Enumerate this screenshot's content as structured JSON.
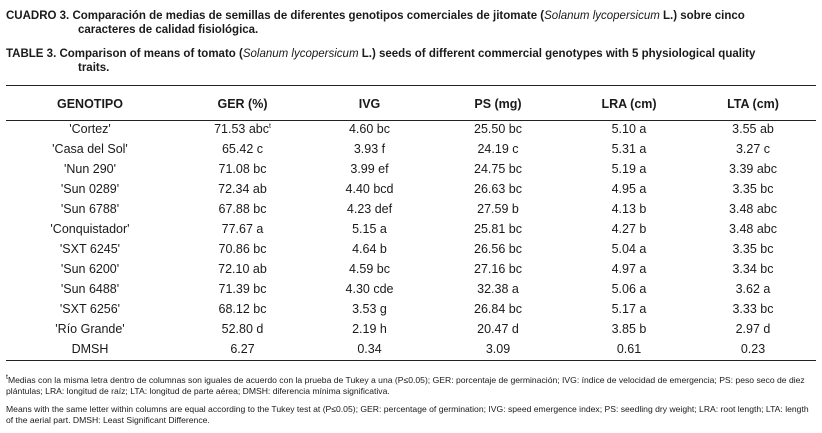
{
  "caption_es": {
    "label": "CUADRO 3.",
    "text_before": " Comparación de medias de semillas de diferentes genotipos comerciales de jitomate (",
    "species": "Solanum lycopersicum",
    "text_after": " L.) sobre cinco",
    "line2": "caracteres de calidad fisiológica."
  },
  "caption_en": {
    "label": "TABLE 3.",
    "text_before": " Comparison of means of tomato (",
    "species": "Solanum lycopersicum",
    "text_after": " L.) seeds of different commercial genotypes with 5 physiological quality",
    "line2": "traits."
  },
  "table": {
    "headers": [
      "GENOTIPO",
      "GER (%)",
      "IVG",
      "PS (mg)",
      "LRA (cm)",
      "LTA (cm)"
    ],
    "rows": [
      [
        "'Cortez'",
        "71.53 abc",
        "4.60 bc",
        "25.50 bc",
        "5.10 a",
        "3.55 ab"
      ],
      [
        "'Casa del Sol'",
        "65.42 c",
        "3.93 f",
        "24.19 c",
        "5.31 a",
        "3.27 c"
      ],
      [
        "'Nun 290'",
        "71.08 bc",
        "3.99 ef",
        "24.75 bc",
        "5.19 a",
        "3.39 abc"
      ],
      [
        "'Sun 0289'",
        "72.34 ab",
        "4.40 bcd",
        "26.63 bc",
        "4.95 a",
        "3.35 bc"
      ],
      [
        "'Sun 6788'",
        "67.88 bc",
        "4.23 def",
        "27.59 b",
        "4.13 b",
        "3.48 abc"
      ],
      [
        "'Conquistador'",
        "77.67 a",
        "5.15 a",
        "25.81 bc",
        "4.27 b",
        "3.48 abc"
      ],
      [
        "'SXT 6245'",
        "70.86 bc",
        "4.64 b",
        "26.56 bc",
        "5.04 a",
        "3.35 bc"
      ],
      [
        "'Sun 6200'",
        "72.10 ab",
        "4.59 bc",
        "27.16 bc",
        "4.97 a",
        "3.34 bc"
      ],
      [
        "'Sun 6488'",
        "71.39 bc",
        "4.30 cde",
        "32.38 a",
        "5.06 a",
        "3.62 a"
      ],
      [
        "'SXT 6256'",
        "68.12 bc",
        "3.53 g",
        "26.84 bc",
        "5.17 a",
        "3.33 bc"
      ],
      [
        "'Río Grande'",
        "52.80 d",
        "2.19 h",
        "20.47 d",
        "3.85 b",
        "2.97 d"
      ],
      [
        "DMSH",
        "6.27",
        "0.34",
        "3.09",
        "0.61",
        "0.23"
      ]
    ],
    "first_cell_superscript": "t"
  },
  "footnote_es": {
    "mark": "t",
    "text": "Medias con la misma letra dentro de columnas son iguales de acuerdo con la prueba de Tukey a una (P≤0.05); GER: porcentaje de germinación; IVG: índice de velocidad de emergencia; PS: peso seco de diez plántulas; LRA: longitud de raíz; LTA: longitud de parte aérea; DMSH: diferencia mínima significativa."
  },
  "footnote_en": {
    "text": "Means with the same letter within columns are equal according to the Tukey test at (P≤0.05); GER: percentage of germination; IVG: speed emergence index; PS: seedling dry weight; LRA: root length; LTA: length of the aerial part. DMSH: Least Significant Difference."
  }
}
